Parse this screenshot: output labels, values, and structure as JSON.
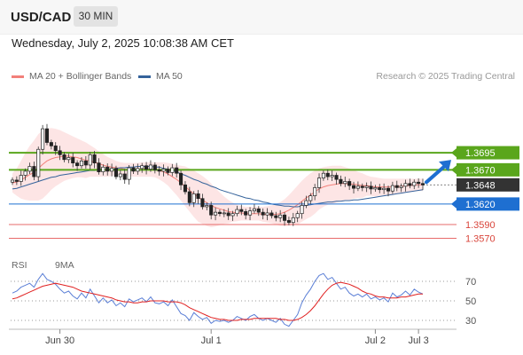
{
  "header": {
    "symbol": "USD/CAD",
    "timeframe": "30 MIN",
    "datetime": "Wednesday, July 2, 2025 10:08:38 AM CET"
  },
  "legend": {
    "bollinger_label": "MA 20 + Bollinger Bands",
    "ma50_label": "MA 50",
    "credit": "Research © 2025 Trading Central",
    "rsi_label": "RSI",
    "rsi_ma_label": "9MA"
  },
  "colors": {
    "green_level": "#5aa61c",
    "blue_level": "#1e6fd1",
    "red_level": "#e76b6b",
    "current": "#333333",
    "ma20": "#f2807a",
    "ma50": "#35639b",
    "band_fill": "#fde2e2",
    "rsi": "#5b7fd6",
    "rsi_ma": "#e02020"
  },
  "chart_data": [
    {
      "type": "candlestick",
      "title": "USD/CAD",
      "x_ticks": [
        "Jun 30",
        "Jul 1",
        "Jul 2",
        "Jul 3"
      ],
      "ylim": [
        1.3555,
        1.3795
      ],
      "levels": [
        {
          "value": 1.3695,
          "label": "1.3695",
          "kind": "resistance",
          "color": "#5aa61c"
        },
        {
          "value": 1.367,
          "label": "1.3670",
          "kind": "resistance",
          "color": "#5aa61c"
        },
        {
          "value": 1.3648,
          "label": "1.3648",
          "kind": "current",
          "color": "#333333"
        },
        {
          "value": 1.362,
          "label": "1.3620",
          "kind": "pivot",
          "color": "#1e6fd1"
        },
        {
          "value": 1.359,
          "label": "1.3590",
          "kind": "support",
          "color": "#e76b6b"
        },
        {
          "value": 1.357,
          "label": "1.3570",
          "kind": "support",
          "color": "#e76b6b"
        }
      ],
      "closes": [
        1.3655,
        1.3653,
        1.3662,
        1.3668,
        1.3675,
        1.366,
        1.37,
        1.373,
        1.371,
        1.3705,
        1.3698,
        1.3692,
        1.3685,
        1.3688,
        1.368,
        1.3676,
        1.3683,
        1.3677,
        1.3692,
        1.368,
        1.3667,
        1.3674,
        1.3668,
        1.3672,
        1.366,
        1.3664,
        1.3656,
        1.3673,
        1.3668,
        1.3672,
        1.3676,
        1.3671,
        1.3677,
        1.367,
        1.3668,
        1.3671,
        1.3666,
        1.3673,
        1.3665,
        1.3648,
        1.3638,
        1.3622,
        1.3635,
        1.3628,
        1.3616,
        1.3618,
        1.3604,
        1.3608,
        1.3606,
        1.3607,
        1.3603,
        1.3606,
        1.3612,
        1.3609,
        1.3604,
        1.361,
        1.3613,
        1.3608,
        1.3604,
        1.3607,
        1.3603,
        1.36,
        1.3604,
        1.3596,
        1.3593,
        1.36,
        1.3606,
        1.3618,
        1.3625,
        1.3632,
        1.3644,
        1.3658,
        1.3665,
        1.366,
        1.3662,
        1.3656,
        1.365,
        1.3653,
        1.3647,
        1.3643,
        1.3646,
        1.3644,
        1.3646,
        1.3642,
        1.3644,
        1.3641,
        1.3643,
        1.3639,
        1.3647,
        1.3644,
        1.3646,
        1.365,
        1.3647,
        1.3652,
        1.365,
        1.3648
      ],
      "ma20": [
        1.3651,
        1.3652,
        1.3655,
        1.3659,
        1.3663,
        1.3666,
        1.3672,
        1.3678,
        1.3683,
        1.3686,
        1.3688,
        1.3689,
        1.369,
        1.369,
        1.3689,
        1.3688,
        1.3686,
        1.3684,
        1.3683,
        1.3681,
        1.3679,
        1.3677,
        1.3675,
        1.3674,
        1.3673,
        1.3672,
        1.3671,
        1.367,
        1.367,
        1.367,
        1.3671,
        1.3671,
        1.3671,
        1.367,
        1.3669,
        1.3667,
        1.3664,
        1.366,
        1.3656,
        1.3651,
        1.3646,
        1.364,
        1.3635,
        1.363,
        1.3626,
        1.3622,
        1.3618,
        1.3615,
        1.3613,
        1.3611,
        1.3609,
        1.3608,
        1.3607,
        1.3607,
        1.3606,
        1.3606,
        1.3606,
        1.3606,
        1.3605,
        1.3605,
        1.3605,
        1.3605,
        1.3606,
        1.3608,
        1.3611,
        1.3615,
        1.3619,
        1.3624,
        1.3629,
        1.3633,
        1.3638,
        1.3642,
        1.3645,
        1.3647,
        1.3648,
        1.3649,
        1.365,
        1.365,
        1.3649,
        1.3649,
        1.3648,
        1.3647,
        1.3647,
        1.3646,
        1.3645,
        1.3645,
        1.3645,
        1.3645,
        1.3645,
        1.3646,
        1.3646,
        1.3647,
        1.3647,
        1.3648,
        1.3648,
        1.3648
      ],
      "band_upper": [
        1.3665,
        1.3672,
        1.3683,
        1.3695,
        1.3705,
        1.3713,
        1.3722,
        1.3728,
        1.373,
        1.3731,
        1.373,
        1.3728,
        1.3725,
        1.3722,
        1.3719,
        1.3716,
        1.3713,
        1.371,
        1.3706,
        1.3702,
        1.3697,
        1.3693,
        1.3689,
        1.3686,
        1.3683,
        1.3681,
        1.368,
        1.368,
        1.368,
        1.368,
        1.3681,
        1.3681,
        1.3681,
        1.3681,
        1.3681,
        1.3681,
        1.368,
        1.3679,
        1.3677,
        1.3676,
        1.3675,
        1.3672,
        1.3669,
        1.3665,
        1.3661,
        1.3656,
        1.365,
        1.3643,
        1.3637,
        1.3631,
        1.3626,
        1.3622,
        1.3619,
        1.3617,
        1.3616,
        1.3616,
        1.3616,
        1.3616,
        1.3616,
        1.3617,
        1.3618,
        1.362,
        1.3623,
        1.3627,
        1.3633,
        1.364,
        1.3647,
        1.3654,
        1.366,
        1.3665,
        1.3669,
        1.3672,
        1.3674,
        1.3675,
        1.3676,
        1.3676,
        1.3676,
        1.3674,
        1.3672,
        1.367,
        1.3667,
        1.3665,
        1.3662,
        1.366,
        1.3659,
        1.3658,
        1.3657,
        1.3657,
        1.3657,
        1.3657,
        1.3657,
        1.3657,
        1.3657,
        1.3657,
        1.3657,
        1.3657
      ],
      "band_lower": [
        1.3637,
        1.3632,
        1.3628,
        1.3626,
        1.3625,
        1.3625,
        1.3625,
        1.3628,
        1.3634,
        1.3641,
        1.3646,
        1.365,
        1.3654,
        1.3656,
        1.3658,
        1.3659,
        1.3659,
        1.3658,
        1.366,
        1.366,
        1.366,
        1.366,
        1.366,
        1.3661,
        1.3662,
        1.3663,
        1.3662,
        1.3661,
        1.366,
        1.366,
        1.366,
        1.366,
        1.366,
        1.3659,
        1.3656,
        1.3652,
        1.3647,
        1.364,
        1.3633,
        1.3625,
        1.3617,
        1.3609,
        1.3601,
        1.3594,
        1.3591,
        1.3588,
        1.3586,
        1.3587,
        1.3589,
        1.3591,
        1.3592,
        1.3594,
        1.3595,
        1.3596,
        1.3596,
        1.3596,
        1.3596,
        1.3596,
        1.3594,
        1.3593,
        1.3592,
        1.359,
        1.3588,
        1.3588,
        1.3588,
        1.3589,
        1.359,
        1.3594,
        1.3598,
        1.3601,
        1.3606,
        1.3612,
        1.3616,
        1.3619,
        1.362,
        1.3622,
        1.3624,
        1.3626,
        1.3626,
        1.3628,
        1.3629,
        1.3629,
        1.3632,
        1.3632,
        1.3631,
        1.3632,
        1.3633,
        1.3633,
        1.3633,
        1.3635,
        1.3635,
        1.3637,
        1.3637,
        1.3639,
        1.3639,
        1.3639
      ],
      "ma50": [
        1.3642,
        1.3643,
        1.3645,
        1.3647,
        1.3649,
        1.3651,
        1.3653,
        1.3655,
        1.3657,
        1.3659,
        1.366,
        1.3662,
        1.3663,
        1.3664,
        1.3665,
        1.3666,
        1.3667,
        1.3668,
        1.3669,
        1.3669,
        1.367,
        1.367,
        1.3671,
        1.3671,
        1.3672,
        1.3673,
        1.3673,
        1.3674,
        1.3674,
        1.3675,
        1.3675,
        1.3675,
        1.3675,
        1.3674,
        1.3674,
        1.3672,
        1.3671,
        1.3669,
        1.3667,
        1.3664,
        1.3662,
        1.3659,
        1.3656,
        1.3654,
        1.3651,
        1.3649,
        1.3646,
        1.3644,
        1.3641,
        1.3639,
        1.3637,
        1.3635,
        1.3633,
        1.3631,
        1.3629,
        1.3628,
        1.3626,
        1.3625,
        1.3623,
        1.3622,
        1.362,
        1.3619,
        1.3618,
        1.3617,
        1.3617,
        1.3616,
        1.3616,
        1.3617,
        1.3618,
        1.3619,
        1.362,
        1.3621,
        1.3622,
        1.3623,
        1.3623,
        1.3624,
        1.3624,
        1.3625,
        1.3625,
        1.3626,
        1.3626,
        1.3627,
        1.3628,
        1.3629,
        1.363,
        1.3631,
        1.3632,
        1.3633,
        1.3634,
        1.3635,
        1.3636,
        1.3637,
        1.3638,
        1.3639,
        1.364,
        1.3641
      ]
    },
    {
      "type": "line",
      "title": "RSI",
      "y_ticks": [
        70,
        50,
        30
      ],
      "ylim": [
        20,
        80
      ],
      "series": [
        {
          "name": "RSI",
          "values": [
            58,
            60,
            64,
            66,
            68,
            64,
            72,
            78,
            72,
            70,
            67,
            62,
            58,
            60,
            55,
            52,
            58,
            53,
            62,
            55,
            48,
            53,
            48,
            51,
            45,
            48,
            44,
            52,
            49,
            51,
            53,
            49,
            54,
            48,
            47,
            49,
            45,
            51,
            44,
            37,
            35,
            30,
            38,
            34,
            31,
            33,
            27,
            30,
            29,
            30,
            28,
            30,
            34,
            32,
            30,
            34,
            36,
            32,
            30,
            32,
            30,
            28,
            32,
            26,
            24,
            30,
            36,
            48,
            56,
            62,
            70,
            76,
            78,
            72,
            74,
            68,
            62,
            64,
            58,
            55,
            57,
            54,
            57,
            52,
            54,
            51,
            53,
            49,
            58,
            54,
            56,
            60,
            56,
            62,
            59,
            57
          ]
        },
        {
          "name": "9MA",
          "values": [
            52,
            53,
            55,
            57,
            59,
            61,
            63,
            65,
            66,
            67,
            68,
            67,
            66,
            65,
            64,
            62,
            60,
            59,
            58,
            57,
            56,
            55,
            54,
            53,
            51,
            50,
            49,
            49,
            48,
            48,
            49,
            49,
            50,
            50,
            50,
            50,
            49,
            49,
            49,
            48,
            46,
            43,
            41,
            39,
            37,
            35,
            33,
            32,
            31,
            31,
            30,
            30,
            30,
            31,
            31,
            31,
            32,
            32,
            32,
            32,
            32,
            32,
            31,
            31,
            30,
            30,
            31,
            33,
            36,
            40,
            45,
            51,
            57,
            62,
            66,
            68,
            69,
            68,
            67,
            65,
            63,
            60,
            58,
            57,
            55,
            54,
            54,
            53,
            53,
            53,
            54,
            54,
            55,
            56,
            57,
            57
          ]
        }
      ]
    }
  ]
}
